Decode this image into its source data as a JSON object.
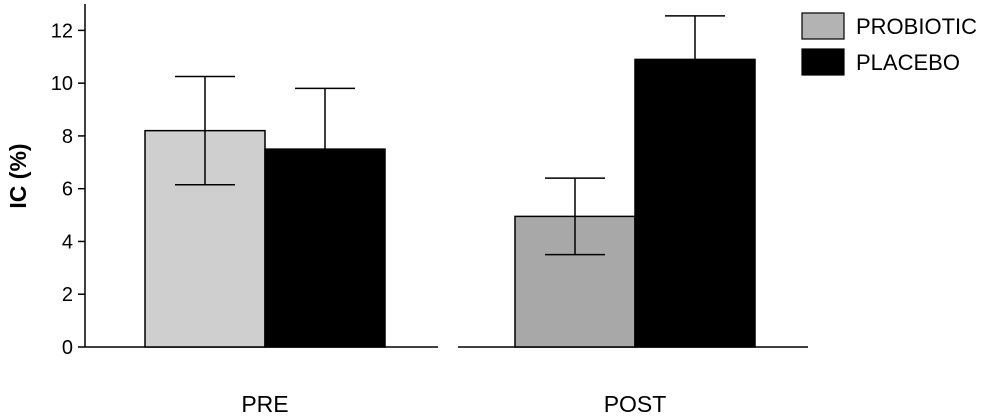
{
  "chart_data": {
    "type": "bar",
    "ylabel": "IC (%)",
    "ylim": [
      0,
      13
    ],
    "yticks": [
      0,
      2,
      4,
      6,
      8,
      10,
      12
    ],
    "categories": [
      "PRE",
      "POST"
    ],
    "series": [
      {
        "name": "PROBIOTIC",
        "values": [
          8.2,
          4.95
        ],
        "errors": [
          2.05,
          1.45
        ],
        "colors": [
          "#cfcfcf",
          "#a8a8a8"
        ]
      },
      {
        "name": "PLACEBO",
        "values": [
          7.5,
          10.9
        ],
        "errors": [
          2.3,
          1.65
        ],
        "colors": [
          "#000000",
          "#000000"
        ]
      }
    ],
    "legend": {
      "position": "top-right",
      "swatch_colors": [
        "#b3b3b3",
        "#000000"
      ]
    },
    "grid": false
  }
}
